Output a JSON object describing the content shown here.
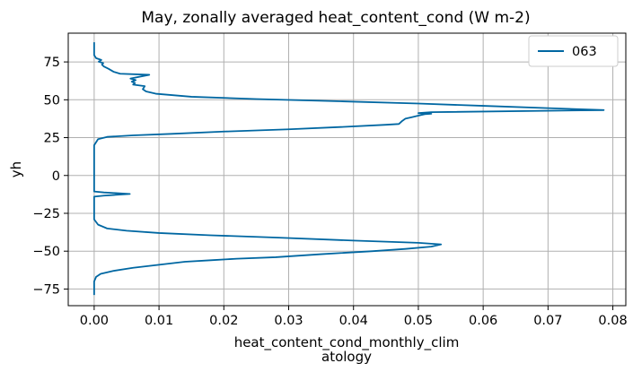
{
  "chart_data": {
    "type": "line",
    "title": "May, zonally averaged heat_content_cond (W m-2)",
    "xlabel_lines": [
      "heat_content_cond_monthly_clim",
      "atology"
    ],
    "ylabel": "yh",
    "xlim": [
      -0.004,
      0.082
    ],
    "ylim": [
      -86,
      94
    ],
    "xticks": [
      0.0,
      0.01,
      0.02,
      0.03,
      0.04,
      0.05,
      0.06,
      0.07,
      0.08
    ],
    "xtick_labels": [
      "0.00",
      "0.01",
      "0.02",
      "0.03",
      "0.04",
      "0.05",
      "0.06",
      "0.07",
      "0.08"
    ],
    "yticks": [
      -75,
      -50,
      -25,
      0,
      25,
      50,
      75
    ],
    "ytick_labels": [
      "−75",
      "−50",
      "−25",
      "0",
      "25",
      "50",
      "75"
    ],
    "grid": true,
    "legend_position": "top-right",
    "series": [
      {
        "name": "063",
        "color": "#0067a2",
        "points": [
          [
            0.0,
            -79
          ],
          [
            0.0,
            -70
          ],
          [
            0.0003,
            -67
          ],
          [
            0.001,
            -65
          ],
          [
            0.003,
            -63
          ],
          [
            0.006,
            -61
          ],
          [
            0.01,
            -59
          ],
          [
            0.014,
            -57
          ],
          [
            0.018,
            -56
          ],
          [
            0.022,
            -55
          ],
          [
            0.028,
            -54
          ],
          [
            0.035,
            -52
          ],
          [
            0.043,
            -50
          ],
          [
            0.048,
            -48.5
          ],
          [
            0.052,
            -47
          ],
          [
            0.0535,
            -45.5
          ],
          [
            0.05,
            -44.5
          ],
          [
            0.04,
            -43
          ],
          [
            0.028,
            -41
          ],
          [
            0.018,
            -39.5
          ],
          [
            0.01,
            -38
          ],
          [
            0.005,
            -36.5
          ],
          [
            0.002,
            -35
          ],
          [
            0.0006,
            -32.5
          ],
          [
            0.0,
            -29
          ],
          [
            0.0,
            -14
          ],
          [
            0.0015,
            -13.3
          ],
          [
            0.0055,
            -12.2
          ],
          [
            0.0015,
            -11.2
          ],
          [
            0.0,
            -10.6
          ],
          [
            0.0,
            20
          ],
          [
            0.0006,
            24
          ],
          [
            0.002,
            25.5
          ],
          [
            0.006,
            26.5
          ],
          [
            0.012,
            27.5
          ],
          [
            0.02,
            29
          ],
          [
            0.03,
            30.5
          ],
          [
            0.038,
            32
          ],
          [
            0.045,
            33.5
          ],
          [
            0.047,
            34
          ],
          [
            0.0475,
            36
          ],
          [
            0.048,
            37.5
          ],
          [
            0.049,
            38.5
          ],
          [
            0.05,
            39.5
          ],
          [
            0.051,
            40.5
          ],
          [
            0.052,
            40.8
          ],
          [
            0.05,
            41.2
          ],
          [
            0.052,
            41.8
          ],
          [
            0.0786,
            43.2
          ],
          [
            0.07,
            44.5
          ],
          [
            0.06,
            46
          ],
          [
            0.05,
            47.5
          ],
          [
            0.038,
            49
          ],
          [
            0.025,
            50.5
          ],
          [
            0.015,
            52
          ],
          [
            0.0095,
            54
          ],
          [
            0.008,
            55.5
          ],
          [
            0.0075,
            57
          ],
          [
            0.0078,
            59
          ],
          [
            0.006,
            60
          ],
          [
            0.0063,
            61
          ],
          [
            0.0058,
            62
          ],
          [
            0.0064,
            63
          ],
          [
            0.0056,
            64
          ],
          [
            0.0085,
            66.5
          ],
          [
            0.004,
            67.2
          ],
          [
            0.003,
            68.5
          ],
          [
            0.0022,
            70.5
          ],
          [
            0.0015,
            72
          ],
          [
            0.0012,
            73.2
          ],
          [
            0.0014,
            74.2
          ],
          [
            0.0007,
            75.2
          ],
          [
            0.0011,
            76.3
          ],
          [
            0.0003,
            77.5
          ],
          [
            0.0,
            79.5
          ],
          [
            0.0,
            88
          ]
        ]
      }
    ]
  }
}
